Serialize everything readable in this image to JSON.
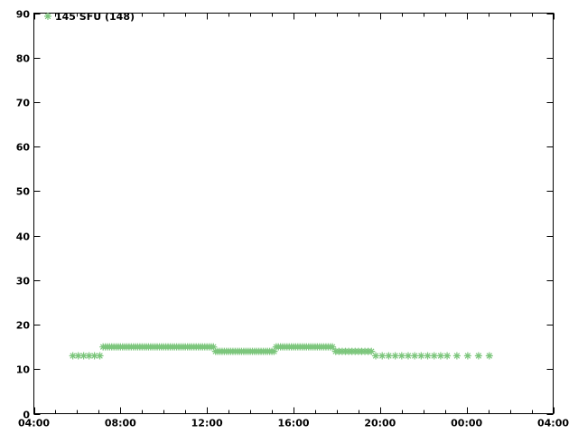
{
  "chart_data": {
    "type": "scatter",
    "title": "",
    "xlabel": "",
    "ylabel": "",
    "background_color": "#ffffff",
    "axis_color": "#000000",
    "grid": false,
    "legend": {
      "label": "145 SFU (148)",
      "position": "top-left",
      "marker": "asterisk",
      "marker_color": "#7cc67c"
    },
    "x_axis": {
      "kind": "time-of-day",
      "range_hours": [
        4,
        28
      ],
      "major_tick_hours": [
        4,
        8,
        12,
        16,
        20,
        24,
        28
      ],
      "major_tick_labels": [
        "04:00",
        "08:00",
        "12:00",
        "16:00",
        "20:00",
        "00:00",
        "04:00"
      ],
      "minor_tick_every_hours": 1,
      "ticks_mirrored_top": true
    },
    "y_axis": {
      "range": [
        0,
        90
      ],
      "tick_values": [
        0,
        10,
        20,
        30,
        40,
        50,
        60,
        70,
        80,
        90
      ],
      "tick_labels": [
        "0",
        "10",
        "20",
        "30",
        "40",
        "50",
        "60",
        "70",
        "80",
        "90"
      ],
      "ticks_mirrored_right": true
    },
    "series": [
      {
        "name": "145 SFU (148)",
        "marker": "asterisk",
        "color": "#7cc67c",
        "unit": "SFU",
        "segments": [
          {
            "value": 13,
            "t": [
              5.8,
              6.05,
              6.3,
              6.55,
              6.8,
              7.05
            ]
          },
          {
            "value": 15,
            "t": [
              7.2,
              7.3,
              7.4,
              7.5,
              7.6,
              7.7,
              7.8,
              7.9,
              8.0,
              8.1,
              8.2,
              8.3,
              8.4,
              8.5,
              8.6,
              8.7,
              8.8,
              8.9,
              9.0,
              9.1,
              9.2,
              9.3,
              9.4,
              9.5,
              9.6,
              9.7,
              9.8,
              9.9,
              10.0,
              10.1,
              10.2,
              10.3,
              10.4,
              10.5,
              10.6,
              10.7,
              10.8,
              10.9,
              11.0,
              11.1,
              11.2,
              11.3,
              11.4,
              11.5,
              11.6,
              11.7,
              11.8,
              11.9,
              12.0,
              12.1,
              12.2,
              12.3
            ]
          },
          {
            "value": 14,
            "t": [
              12.4,
              12.5,
              12.6,
              12.7,
              12.8,
              12.9,
              13.0,
              13.1,
              13.2,
              13.3,
              13.4,
              13.5,
              13.6,
              13.7,
              13.8,
              13.9,
              14.0,
              14.1,
              14.2,
              14.3,
              14.4,
              14.5,
              14.6,
              14.7,
              14.8,
              14.9,
              15.0,
              15.1
            ]
          },
          {
            "value": 15,
            "t": [
              15.2,
              15.3,
              15.4,
              15.5,
              15.6,
              15.7,
              15.8,
              15.9,
              16.0,
              16.1,
              16.2,
              16.3,
              16.4,
              16.5,
              16.6,
              16.7,
              16.8,
              16.9,
              17.0,
              17.1,
              17.2,
              17.3,
              17.4,
              17.5,
              17.6,
              17.7,
              17.8
            ]
          },
          {
            "value": 14,
            "t": [
              17.95,
              18.1,
              18.25,
              18.4,
              18.55,
              18.7,
              18.85,
              19.0,
              19.15,
              19.3,
              19.45,
              19.6
            ]
          },
          {
            "value": 13,
            "t": [
              19.8,
              20.1,
              20.4,
              20.7,
              21.0,
              21.3,
              21.6,
              21.9,
              22.2,
              22.5,
              22.8
            ]
          },
          {
            "value": 13,
            "t": [
              23.1,
              23.55,
              24.05,
              24.55,
              25.05
            ]
          }
        ]
      }
    ]
  }
}
